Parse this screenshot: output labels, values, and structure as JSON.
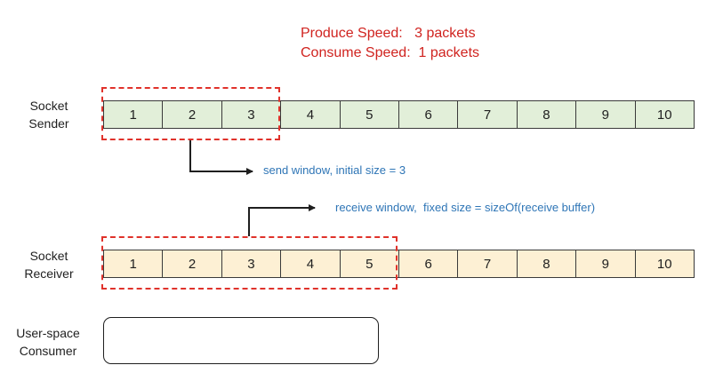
{
  "speeds": {
    "produce_label": "Produce Speed:",
    "produce_value": "3 packets",
    "consume_label": "Consume Speed:",
    "consume_value": "1 packets"
  },
  "sender": {
    "label_line1": "Socket",
    "label_line2": "Sender",
    "cells": [
      "1",
      "2",
      "3",
      "4",
      "5",
      "6",
      "7",
      "8",
      "9",
      "10"
    ],
    "window_size": 3,
    "window_note": "send window, initial size = 3"
  },
  "receiver": {
    "label_line1": "Socket",
    "label_line2": "Receiver",
    "cells": [
      "1",
      "2",
      "3",
      "4",
      "5",
      "6",
      "7",
      "8",
      "9",
      "10"
    ],
    "window_size": 5,
    "window_note": "receive window,  fixed size = sizeOf(receive buffer)"
  },
  "consumer": {
    "label_line1": "User-space",
    "label_line2": "Consumer"
  },
  "colors": {
    "speed_text": "#d0231f",
    "window_border": "#e0322b",
    "note_text": "#2e75b6",
    "sender_cell": "#e2efd9",
    "receiver_cell": "#fdf0d4"
  }
}
